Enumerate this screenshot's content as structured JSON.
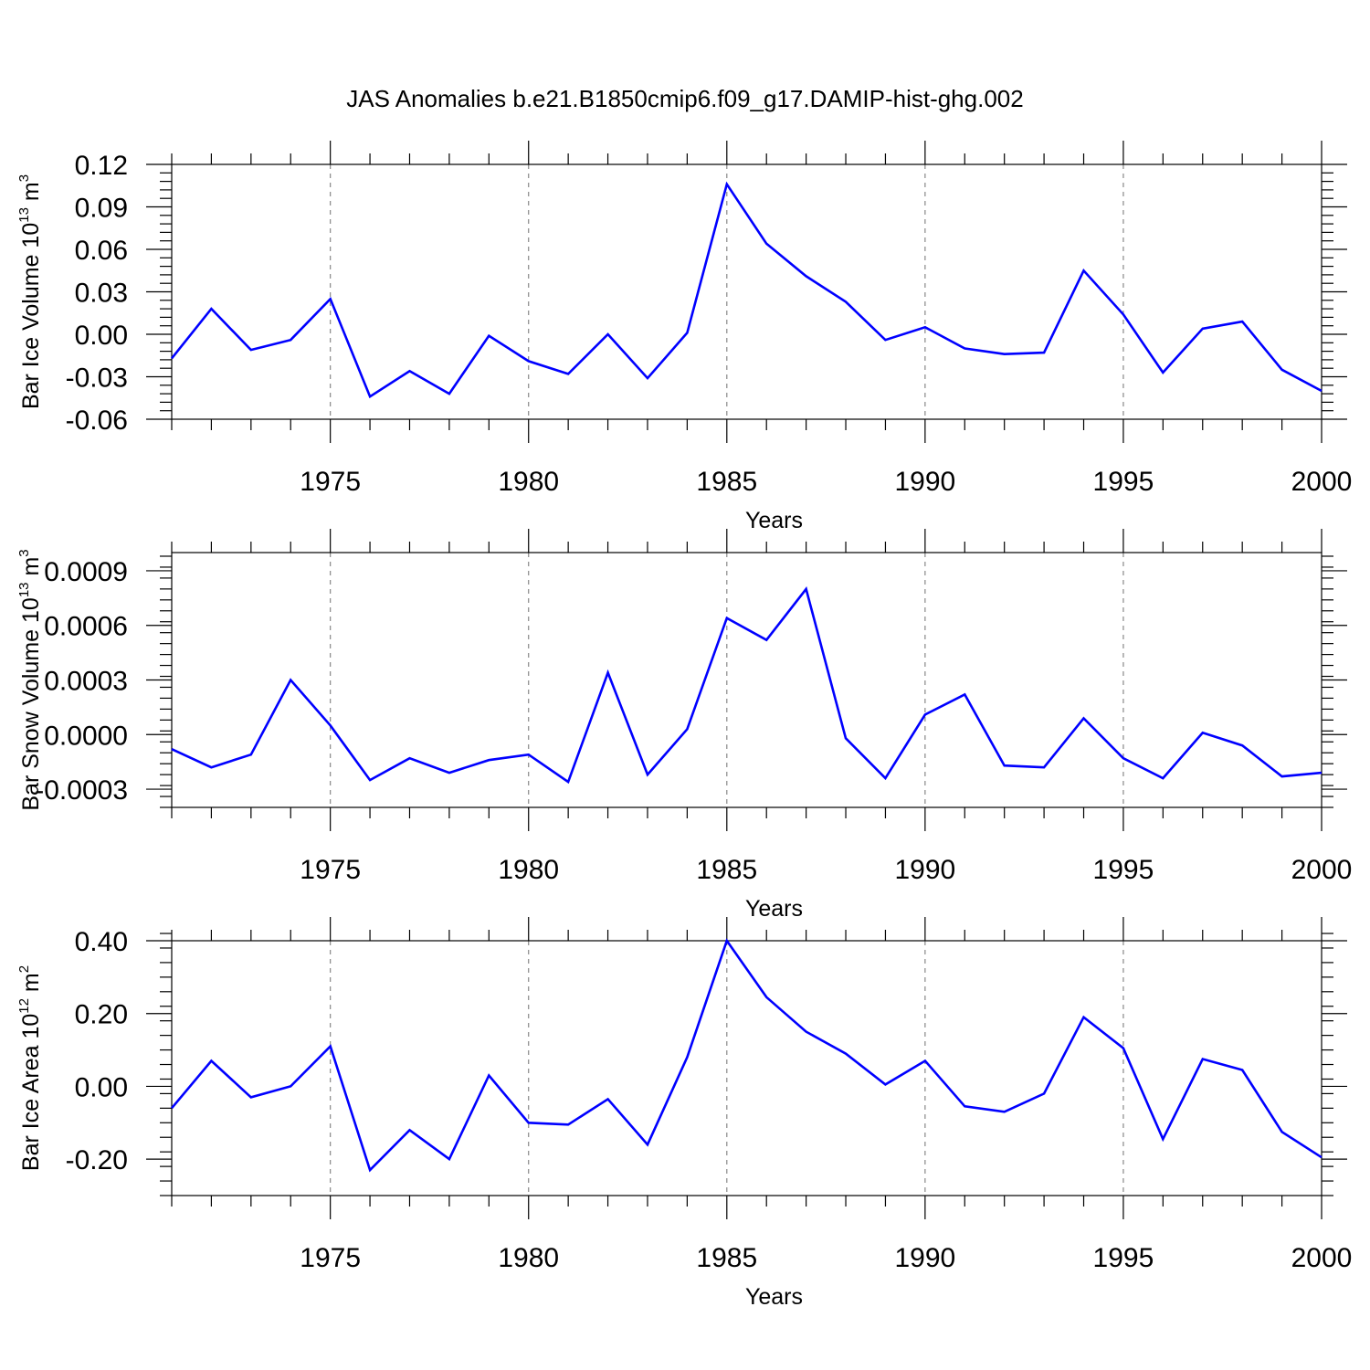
{
  "title": "JAS Anomalies b.e21.B1850cmip6.f09_g17.DAMIP-hist-ghg.002",
  "line_color": "#0000ff",
  "chart_data": [
    {
      "type": "line",
      "title": "",
      "xlabel": "Years",
      "ylabel_parts": {
        "pre": "Bar Ice Volume 10",
        "sup1": "13",
        "mid": " m",
        "sup2": "3"
      },
      "xlim": [
        1971,
        2000
      ],
      "ylim": [
        -0.06,
        0.12
      ],
      "x_ticks": [
        1975,
        1980,
        1985,
        1990,
        1995,
        2000
      ],
      "y_ticks": [
        "0.12",
        "0.09",
        "0.06",
        "0.03",
        "0.00",
        "-0.03",
        "-0.06"
      ],
      "y_tick_values": [
        0.12,
        0.09,
        0.06,
        0.03,
        0.0,
        -0.03,
        -0.06
      ],
      "x": [
        1971,
        1972,
        1973,
        1974,
        1975,
        1976,
        1977,
        1978,
        1979,
        1980,
        1981,
        1982,
        1983,
        1984,
        1985,
        1986,
        1987,
        1988,
        1989,
        1990,
        1991,
        1992,
        1993,
        1994,
        1995,
        1996,
        1997,
        1998,
        1999,
        2000
      ],
      "values": [
        -0.017,
        0.018,
        -0.011,
        -0.004,
        0.025,
        -0.044,
        -0.026,
        -0.042,
        -0.001,
        -0.019,
        -0.028,
        0.0,
        -0.031,
        0.001,
        0.106,
        0.064,
        0.041,
        0.023,
        -0.004,
        0.005,
        -0.01,
        -0.014,
        -0.013,
        0.045,
        0.014,
        -0.027,
        0.004,
        0.009,
        -0.025,
        -0.04
      ]
    },
    {
      "type": "line",
      "title": "",
      "xlabel": "Years",
      "ylabel_parts": {
        "pre": "Bar Snow Volume 10",
        "sup1": "13",
        "mid": " m",
        "sup2": "3"
      },
      "xlim": [
        1971,
        2000
      ],
      "ylim": [
        -0.0004,
        0.001
      ],
      "x_ticks": [
        1975,
        1980,
        1985,
        1990,
        1995,
        2000
      ],
      "y_ticks": [
        "0.0009",
        "0.0006",
        "0.0003",
        "0.0000",
        "-0.0003"
      ],
      "y_tick_values": [
        0.0009,
        0.0006,
        0.0003,
        0.0,
        -0.0003
      ],
      "x": [
        1971,
        1972,
        1973,
        1974,
        1975,
        1976,
        1977,
        1978,
        1979,
        1980,
        1981,
        1982,
        1983,
        1984,
        1985,
        1986,
        1987,
        1988,
        1989,
        1990,
        1991,
        1992,
        1993,
        1994,
        1995,
        1996,
        1997,
        1998,
        1999,
        2000
      ],
      "values": [
        -8e-05,
        -0.00018,
        -0.00011,
        0.0003,
        5e-05,
        -0.00025,
        -0.00013,
        -0.00021,
        -0.00014,
        -0.00011,
        -0.00026,
        0.00034,
        -0.00022,
        3e-05,
        0.00064,
        0.00052,
        0.0008,
        -2e-05,
        -0.00024,
        0.00011,
        0.00022,
        -0.00017,
        -0.00018,
        9e-05,
        -0.00013,
        -0.00024,
        1e-05,
        -6e-05,
        -0.00023,
        -0.00021
      ]
    },
    {
      "type": "line",
      "title": "",
      "xlabel": "Years",
      "ylabel_parts": {
        "pre": "Bar Ice Area 10",
        "sup1": "12",
        "mid": " m",
        "sup2": "2"
      },
      "xlim": [
        1971,
        2000
      ],
      "ylim": [
        -0.3,
        0.4
      ],
      "x_ticks": [
        1975,
        1980,
        1985,
        1990,
        1995,
        2000
      ],
      "y_ticks": [
        "0.40",
        "0.20",
        "0.00",
        "-0.20"
      ],
      "y_tick_values": [
        0.4,
        0.2,
        0.0,
        -0.2
      ],
      "x": [
        1971,
        1972,
        1973,
        1974,
        1975,
        1976,
        1977,
        1978,
        1979,
        1980,
        1981,
        1982,
        1983,
        1984,
        1985,
        1986,
        1987,
        1988,
        1989,
        1990,
        1991,
        1992,
        1993,
        1994,
        1995,
        1996,
        1997,
        1998,
        1999,
        2000
      ],
      "values": [
        -0.06,
        0.07,
        -0.03,
        0.0,
        0.11,
        -0.23,
        -0.12,
        -0.2,
        0.03,
        -0.1,
        -0.105,
        -0.035,
        -0.16,
        0.08,
        0.4,
        0.245,
        0.15,
        0.09,
        0.005,
        0.07,
        -0.055,
        -0.07,
        -0.02,
        0.19,
        0.105,
        -0.145,
        0.075,
        0.045,
        -0.125,
        -0.195
      ]
    }
  ]
}
